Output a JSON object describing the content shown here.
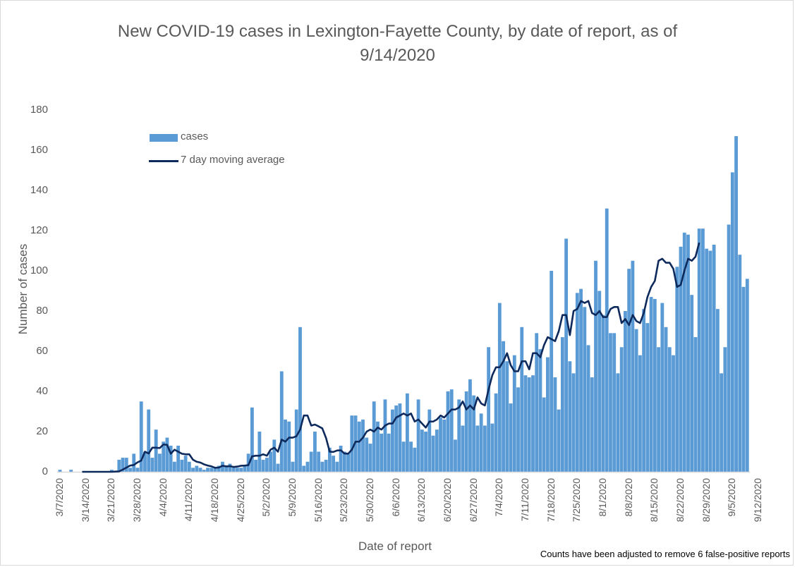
{
  "colors": {
    "bars": "#5b9bd5",
    "line": "#0e2a5c",
    "text": "#595959",
    "axis": "#d9d9d9"
  },
  "chart_data": {
    "type": "bar",
    "title": "New COVID-19 cases in Lexington-Fayette County, by date of report, as of 9/14/2020",
    "title_line1": "New COVID-19 cases in Lexington-Fayette County, by date of report, as of",
    "title_line2": "9/14/2020",
    "xlabel": "Date of report",
    "ylabel": "Number of cases",
    "ylim": [
      0,
      180
    ],
    "yticks": [
      0,
      20,
      40,
      60,
      80,
      100,
      120,
      140,
      160,
      180
    ],
    "xtick_labels": [
      "3/7/2020",
      "3/14/2020",
      "3/21/2020",
      "3/28/2020",
      "4/4/2020",
      "4/11/2020",
      "4/18/2020",
      "4/25/2020",
      "5/2/2020",
      "5/9/2020",
      "5/16/2020",
      "5/23/2020",
      "5/30/2020",
      "6/6/2020",
      "6/13/2020",
      "6/20/2020",
      "6/27/2020",
      "7/4/2020",
      "7/11/2020",
      "7/18/2020",
      "7/25/2020",
      "8/1/2020",
      "8/8/2020",
      "8/15/2020",
      "8/22/2020",
      "8/29/2020",
      "9/5/2020",
      "9/12/2020"
    ],
    "start_date": "3/7/2020",
    "end_date": "9/14/2020",
    "grid": false,
    "legend_position": "top-left",
    "annotation": "Counts have been adjusted to remove 6 false-positive reports",
    "series": [
      {
        "name": "cases",
        "type": "bar",
        "values": [
          1,
          0,
          0,
          1,
          0,
          0,
          0,
          0,
          0,
          0,
          0,
          0,
          0,
          0,
          1,
          0,
          6,
          7,
          7,
          2,
          9,
          2,
          35,
          10,
          31,
          7,
          21,
          9,
          15,
          17,
          13,
          5,
          13,
          6,
          8,
          5,
          2,
          3,
          2,
          1,
          2,
          2,
          2,
          3,
          5,
          3,
          4,
          2,
          2,
          2,
          3,
          9,
          32,
          6,
          20,
          6,
          7,
          10,
          16,
          4,
          50,
          26,
          25,
          5,
          31,
          72,
          3,
          5,
          10,
          20,
          10,
          5,
          6,
          12,
          8,
          5,
          13,
          10,
          9,
          28,
          28,
          25,
          26,
          17,
          14,
          35,
          25,
          19,
          36,
          19,
          31,
          33,
          34,
          15,
          39,
          15,
          12,
          36,
          21,
          20,
          31,
          18,
          21,
          27,
          26,
          40,
          41,
          16,
          36,
          23,
          40,
          46,
          38,
          23,
          29,
          23,
          62,
          24,
          39,
          84,
          65,
          55,
          34,
          58,
          42,
          72,
          48,
          47,
          48,
          69,
          61,
          37,
          57,
          100,
          47,
          31,
          67,
          116,
          55,
          49,
          89,
          91,
          82,
          63,
          47,
          105,
          90,
          78,
          131,
          69,
          69,
          49,
          62,
          80,
          101,
          105,
          71,
          58,
          81,
          74,
          87,
          86,
          62,
          84,
          72,
          62,
          58,
          102,
          112,
          119,
          118,
          88,
          67,
          121,
          121,
          111,
          110,
          113,
          81,
          49,
          62,
          123,
          149,
          167,
          108,
          92,
          96
        ]
      },
      {
        "name": "7 day moving average",
        "type": "line",
        "start_index": 6,
        "values": [
          0,
          0,
          0,
          0,
          0,
          0,
          0,
          0,
          0,
          0.1,
          0.2,
          1.1,
          2.1,
          3.1,
          3.4,
          4.7,
          5.6,
          10,
          9.1,
          12,
          12,
          11.8,
          13.6,
          13.4,
          9,
          11,
          10,
          9,
          8.7,
          8.7,
          6,
          5,
          4.6,
          3.7,
          3.1,
          2.7,
          2,
          2.1,
          3,
          2.7,
          2.8,
          2.4,
          2.6,
          3,
          3.1,
          3.3,
          7.7,
          8,
          8,
          8.7,
          8,
          11,
          12,
          10,
          16,
          15,
          17,
          17,
          17.7,
          21,
          28,
          28,
          23,
          23.5,
          22.6,
          21.6,
          16.9,
          10,
          9.9,
          10.6,
          10.7,
          9.1,
          9,
          11,
          15,
          15,
          17,
          20,
          21,
          20,
          22,
          21,
          23,
          24,
          24,
          27,
          28,
          29,
          28,
          29,
          25,
          26,
          24,
          22,
          25,
          25,
          26,
          28,
          27,
          29,
          31,
          31,
          32,
          35,
          31,
          33,
          31,
          37,
          34,
          33,
          41,
          48,
          52,
          52,
          55,
          59,
          53,
          50,
          50,
          55,
          55,
          51,
          59,
          59,
          57,
          63,
          67,
          66,
          65,
          70,
          78,
          78,
          68,
          80,
          81,
          85,
          84,
          85,
          79,
          78,
          80,
          77,
          77,
          81,
          82,
          82,
          74,
          76,
          73,
          78,
          75,
          74,
          79,
          87,
          92,
          95,
          105,
          106,
          104,
          104,
          101,
          92,
          93,
          100,
          106,
          105,
          107,
          114
        ]
      }
    ]
  },
  "legend": {
    "cases_label": "cases",
    "avg_label": "7 day moving average"
  }
}
